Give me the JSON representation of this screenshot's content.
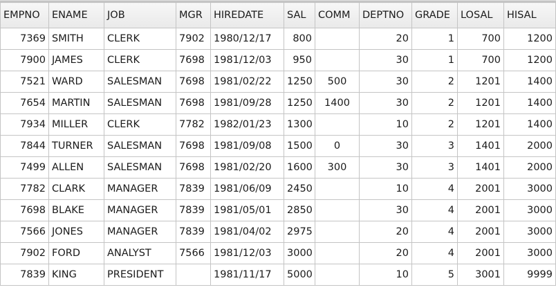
{
  "columns": [
    "EMPNO",
    "ENAME",
    "JOB",
    "MGR",
    "HIREDATE",
    "SAL",
    "COMM",
    "DEPTNO",
    "GRADE",
    "LOSAL",
    "HISAL"
  ],
  "rows": [
    [
      "7369",
      "SMITH",
      "CLERK",
      "7902",
      "1980/12/17",
      "800",
      "",
      "20",
      "1",
      "700",
      "1200"
    ],
    [
      "7900",
      "JAMES",
      "CLERK",
      "7698",
      "1981/12/03",
      "950",
      "",
      "30",
      "1",
      "700",
      "1200"
    ],
    [
      "7521",
      "WARD",
      "SALESMAN",
      "7698",
      "1981/02/22",
      "1250",
      "500",
      "30",
      "2",
      "1201",
      "1400"
    ],
    [
      "7654",
      "MARTIN",
      "SALESMAN",
      "7698",
      "1981/09/28",
      "1250",
      "1400",
      "30",
      "2",
      "1201",
      "1400"
    ],
    [
      "7934",
      "MILLER",
      "CLERK",
      "7782",
      "1982/01/23",
      "1300",
      "",
      "10",
      "2",
      "1201",
      "1400"
    ],
    [
      "7844",
      "TURNER",
      "SALESMAN",
      "7698",
      "1981/09/08",
      "1500",
      "0",
      "30",
      "3",
      "1401",
      "2000"
    ],
    [
      "7499",
      "ALLEN",
      "SALESMAN",
      "7698",
      "1981/02/20",
      "1600",
      "300",
      "30",
      "3",
      "1401",
      "2000"
    ],
    [
      "7782",
      "CLARK",
      "MANAGER",
      "7839",
      "1981/06/09",
      "2450",
      "",
      "10",
      "4",
      "2001",
      "3000"
    ],
    [
      "7698",
      "BLAKE",
      "MANAGER",
      "7839",
      "1981/05/01",
      "2850",
      "",
      "30",
      "4",
      "2001",
      "3000"
    ],
    [
      "7566",
      "JONES",
      "MANAGER",
      "7839",
      "1981/04/02",
      "2975",
      "",
      "20",
      "4",
      "2001",
      "3000"
    ],
    [
      "7902",
      "FORD",
      "ANALYST",
      "7566",
      "1981/12/03",
      "3000",
      "",
      "20",
      "4",
      "2001",
      "3000"
    ],
    [
      "7839",
      "KING",
      "PRESIDENT",
      "",
      "1981/11/17",
      "5000",
      "",
      "10",
      "5",
      "3001",
      "9999"
    ]
  ]
}
